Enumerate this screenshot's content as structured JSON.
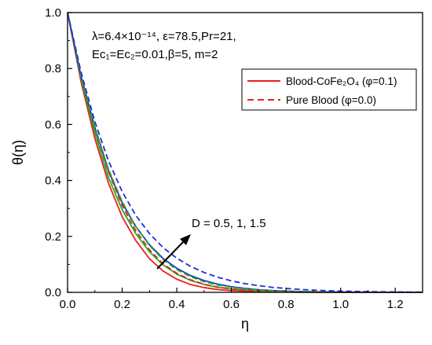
{
  "chart_data": {
    "type": "line",
    "title": "",
    "xlabel": "η",
    "ylabel": "θ(η)",
    "xlim": [
      0.0,
      1.3
    ],
    "ylim": [
      0.0,
      1.0
    ],
    "x_ticks": [
      "0.0",
      "0.2",
      "0.4",
      "0.6",
      "0.8",
      "1.0",
      "1.2"
    ],
    "y_ticks": [
      "0.0",
      "0.2",
      "0.4",
      "0.6",
      "0.8",
      "1.0"
    ],
    "grid": false,
    "legend_position": "upper-right",
    "parameters_line1": "λ=6.4×10⁻¹⁴, ε=78.5,Pr=21,",
    "parameters_line2": "Ec₁=Ec₂=0.01,β=5, m=2",
    "legend": [
      {
        "label": "Blood-CoFe₂O₄ (φ=0.1)",
        "style": "solid",
        "color": "#e8211c"
      },
      {
        "label": "Pure Blood (φ=0.0)",
        "style": "dashed",
        "color": "#e8211c"
      }
    ],
    "annotation": "D = 0.5, 1, 1.5",
    "x": [
      0.0,
      0.05,
      0.1,
      0.15,
      0.2,
      0.25,
      0.3,
      0.35,
      0.4,
      0.45,
      0.5,
      0.55,
      0.6,
      0.65,
      0.7,
      0.75,
      0.8,
      0.85,
      0.9,
      0.95,
      1.0,
      1.05,
      1.1,
      1.15,
      1.2,
      1.25,
      1.3
    ],
    "series": [
      {
        "D": 0.5,
        "phi": 0.1,
        "color": "#e8211c",
        "dash": false,
        "values": [
          1.0,
          0.75,
          0.55,
          0.39,
          0.27,
          0.185,
          0.12,
          0.076,
          0.047,
          0.028,
          0.017,
          0.01,
          0.006,
          0.004,
          0.0025,
          0.0015,
          0.001,
          0.0006,
          0.0004,
          0.0002,
          0.0001,
          0.0,
          0.0,
          0.0,
          0.0,
          0.0,
          0.0
        ]
      },
      {
        "D": 1.0,
        "phi": 0.1,
        "color": "#22b022",
        "dash": false,
        "values": [
          1.0,
          0.76,
          0.57,
          0.41,
          0.295,
          0.21,
          0.145,
          0.098,
          0.065,
          0.043,
          0.028,
          0.018,
          0.012,
          0.008,
          0.005,
          0.003,
          0.002,
          0.0013,
          0.0008,
          0.0005,
          0.0003,
          0.0002,
          0.0001,
          0.0,
          0.0,
          0.0,
          0.0
        ]
      },
      {
        "D": 1.5,
        "phi": 0.1,
        "color": "#1e2fd4",
        "dash": false,
        "values": [
          1.0,
          0.77,
          0.59,
          0.435,
          0.32,
          0.235,
          0.17,
          0.121,
          0.086,
          0.06,
          0.042,
          0.029,
          0.02,
          0.014,
          0.0095,
          0.0065,
          0.0045,
          0.003,
          0.002,
          0.0013,
          0.0009,
          0.0006,
          0.0004,
          0.0003,
          0.0002,
          0.0001,
          0.0
        ]
      },
      {
        "D": 0.5,
        "phi": 0.0,
        "color": "#e8211c",
        "dash": true,
        "values": [
          1.0,
          0.77,
          0.585,
          0.43,
          0.31,
          0.22,
          0.152,
          0.102,
          0.068,
          0.045,
          0.029,
          0.019,
          0.012,
          0.008,
          0.005,
          0.003,
          0.002,
          0.0012,
          0.0007,
          0.0004,
          0.0002,
          0.0001,
          0.0,
          0.0,
          0.0,
          0.0,
          0.0
        ]
      },
      {
        "D": 1.0,
        "phi": 0.0,
        "color": "#22b022",
        "dash": true,
        "values": [
          1.0,
          0.775,
          0.59,
          0.44,
          0.325,
          0.235,
          0.167,
          0.117,
          0.081,
          0.056,
          0.038,
          0.026,
          0.018,
          0.012,
          0.0085,
          0.0058,
          0.004,
          0.0027,
          0.0018,
          0.0012,
          0.0008,
          0.0005,
          0.0003,
          0.0002,
          0.0001,
          0.0,
          0.0
        ]
      },
      {
        "D": 1.5,
        "phi": 0.0,
        "color": "#1e2fd4",
        "dash": true,
        "values": [
          1.0,
          0.785,
          0.61,
          0.47,
          0.36,
          0.275,
          0.21,
          0.16,
          0.122,
          0.093,
          0.071,
          0.054,
          0.041,
          0.031,
          0.024,
          0.018,
          0.014,
          0.0105,
          0.008,
          0.006,
          0.0045,
          0.0034,
          0.0026,
          0.002,
          0.0015,
          0.0011,
          0.0008
        ]
      }
    ]
  }
}
